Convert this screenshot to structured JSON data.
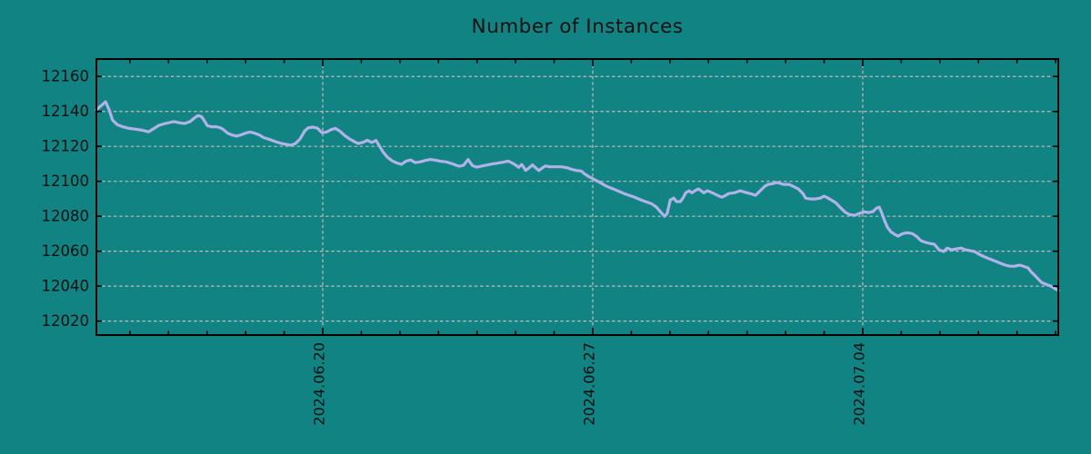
{
  "figure": {
    "type": "plot-window"
  },
  "chart_data": {
    "type": "line",
    "title": "Number of Instances",
    "xlabel": "",
    "ylabel": "",
    "legend": "none",
    "grid": true,
    "x_unit": "days relative to 2024-06-20",
    "xlim": [
      -5.87,
      19.07
    ],
    "ylim": [
      12012,
      12170
    ],
    "y_ticks": [
      12020,
      12040,
      12060,
      12080,
      12100,
      12120,
      12140,
      12160
    ],
    "x_major_ticks": [
      {
        "t": 0,
        "label": "2024.06.20"
      },
      {
        "t": 7,
        "label": "2024.06.27"
      },
      {
        "t": 14,
        "label": "2024.07.04"
      }
    ],
    "x_minor_tick_step": 1,
    "colors": {
      "background": "#128383",
      "line": "#b0b2e8",
      "grid": "#bdbdbd",
      "axis": "#000000",
      "text": "#101010"
    },
    "series": [
      {
        "name": "instances",
        "points": [
          [
            -5.87,
            12141.0
          ],
          [
            -5.76,
            12143.0
          ],
          [
            -5.63,
            12145.5
          ],
          [
            -5.54,
            12141.0
          ],
          [
            -5.45,
            12135.0
          ],
          [
            -5.33,
            12132.5
          ],
          [
            -5.18,
            12131.2
          ],
          [
            -5.02,
            12130.3
          ],
          [
            -4.85,
            12129.8
          ],
          [
            -4.67,
            12129.2
          ],
          [
            -4.52,
            12128.3
          ],
          [
            -4.38,
            12130.2
          ],
          [
            -4.26,
            12131.9
          ],
          [
            -4.12,
            12132.9
          ],
          [
            -3.98,
            12133.6
          ],
          [
            -3.86,
            12134.2
          ],
          [
            -3.72,
            12133.5
          ],
          [
            -3.58,
            12133.1
          ],
          [
            -3.44,
            12134.2
          ],
          [
            -3.32,
            12136.4
          ],
          [
            -3.23,
            12137.6
          ],
          [
            -3.14,
            12137.0
          ],
          [
            -3.06,
            12134.3
          ],
          [
            -2.99,
            12131.8
          ],
          [
            -2.88,
            12131.2
          ],
          [
            -2.76,
            12131.3
          ],
          [
            -2.64,
            12130.5
          ],
          [
            -2.57,
            12129.5
          ],
          [
            -2.47,
            12127.6
          ],
          [
            -2.36,
            12126.6
          ],
          [
            -2.24,
            12125.9
          ],
          [
            -2.12,
            12126.6
          ],
          [
            -2.0,
            12127.6
          ],
          [
            -1.89,
            12128.2
          ],
          [
            -1.77,
            12127.6
          ],
          [
            -1.65,
            12126.6
          ],
          [
            -1.53,
            12125.0
          ],
          [
            -1.41,
            12124.2
          ],
          [
            -1.3,
            12123.3
          ],
          [
            -1.18,
            12122.4
          ],
          [
            -1.06,
            12121.6
          ],
          [
            -0.94,
            12121.1
          ],
          [
            -0.82,
            12120.7
          ],
          [
            -0.71,
            12121.6
          ],
          [
            -0.59,
            12124.2
          ],
          [
            -0.47,
            12128.8
          ],
          [
            -0.38,
            12130.6
          ],
          [
            -0.26,
            12131.0
          ],
          [
            -0.14,
            12130.4
          ],
          [
            -0.02,
            12127.8
          ],
          [
            0.1,
            12128.2
          ],
          [
            0.22,
            12129.6
          ],
          [
            0.33,
            12130.3
          ],
          [
            0.45,
            12128.6
          ],
          [
            0.57,
            12126.2
          ],
          [
            0.69,
            12124.3
          ],
          [
            0.81,
            12122.8
          ],
          [
            0.92,
            12121.6
          ],
          [
            1.04,
            12122.3
          ],
          [
            1.16,
            12123.5
          ],
          [
            1.27,
            12122.2
          ],
          [
            1.38,
            12123.4
          ],
          [
            1.46,
            12120.5
          ],
          [
            1.56,
            12116.9
          ],
          [
            1.68,
            12113.7
          ],
          [
            1.8,
            12111.7
          ],
          [
            1.92,
            12110.5
          ],
          [
            2.04,
            12109.7
          ],
          [
            2.16,
            12111.6
          ],
          [
            2.28,
            12112.2
          ],
          [
            2.4,
            12110.7
          ],
          [
            2.52,
            12111.1
          ],
          [
            2.65,
            12111.9
          ],
          [
            2.79,
            12112.5
          ],
          [
            2.92,
            12112.1
          ],
          [
            3.06,
            12111.5
          ],
          [
            3.2,
            12111.1
          ],
          [
            3.34,
            12110.2
          ],
          [
            3.46,
            12109.2
          ],
          [
            3.54,
            12108.6
          ],
          [
            3.65,
            12109.2
          ],
          [
            3.77,
            12112.5
          ],
          [
            3.88,
            12109.0
          ],
          [
            3.99,
            12108.1
          ],
          [
            4.12,
            12108.7
          ],
          [
            4.25,
            12109.3
          ],
          [
            4.39,
            12109.9
          ],
          [
            4.53,
            12110.4
          ],
          [
            4.67,
            12110.9
          ],
          [
            4.81,
            12111.6
          ],
          [
            4.91,
            12110.5
          ],
          [
            5.0,
            12109.3
          ],
          [
            5.08,
            12108.0
          ],
          [
            5.16,
            12109.6
          ],
          [
            5.26,
            12106.3
          ],
          [
            5.36,
            12107.9
          ],
          [
            5.44,
            12109.4
          ],
          [
            5.52,
            12107.7
          ],
          [
            5.6,
            12106.2
          ],
          [
            5.68,
            12107.5
          ],
          [
            5.77,
            12108.8
          ],
          [
            5.89,
            12108.3
          ],
          [
            6.03,
            12108.3
          ],
          [
            6.19,
            12108.3
          ],
          [
            6.33,
            12107.8
          ],
          [
            6.46,
            12106.8
          ],
          [
            6.58,
            12106.2
          ],
          [
            6.7,
            12105.9
          ],
          [
            6.79,
            12104.2
          ],
          [
            6.9,
            12102.7
          ],
          [
            7.01,
            12101.4
          ],
          [
            7.13,
            12100.0
          ],
          [
            7.36,
            12097.2
          ],
          [
            7.6,
            12095.0
          ],
          [
            7.83,
            12092.8
          ],
          [
            8.07,
            12091.0
          ],
          [
            8.3,
            12088.9
          ],
          [
            8.53,
            12087.1
          ],
          [
            8.65,
            12085.2
          ],
          [
            8.76,
            12082.5
          ],
          [
            8.86,
            12080.0
          ],
          [
            8.93,
            12081.5
          ],
          [
            9.01,
            12089.3
          ],
          [
            9.1,
            12090.4
          ],
          [
            9.17,
            12088.4
          ],
          [
            9.27,
            12088.4
          ],
          [
            9.34,
            12090.4
          ],
          [
            9.41,
            12093.4
          ],
          [
            9.5,
            12094.6
          ],
          [
            9.57,
            12093.4
          ],
          [
            9.65,
            12094.6
          ],
          [
            9.74,
            12095.6
          ],
          [
            9.81,
            12094.6
          ],
          [
            9.88,
            12093.4
          ],
          [
            9.97,
            12094.6
          ],
          [
            10.05,
            12093.9
          ],
          [
            10.14,
            12093.0
          ],
          [
            10.28,
            12091.5
          ],
          [
            10.35,
            12090.9
          ],
          [
            10.45,
            12092.0
          ],
          [
            10.52,
            12093.0
          ],
          [
            10.68,
            12093.5
          ],
          [
            10.82,
            12094.6
          ],
          [
            10.99,
            12093.5
          ],
          [
            11.15,
            12092.5
          ],
          [
            11.22,
            12092.0
          ],
          [
            11.29,
            12093.5
          ],
          [
            11.39,
            12095.6
          ],
          [
            11.46,
            12097.2
          ],
          [
            11.55,
            12098.2
          ],
          [
            11.69,
            12098.8
          ],
          [
            11.76,
            12099.3
          ],
          [
            11.86,
            12098.8
          ],
          [
            11.95,
            12098.2
          ],
          [
            12.09,
            12098.2
          ],
          [
            12.19,
            12097.2
          ],
          [
            12.33,
            12095.6
          ],
          [
            12.45,
            12093.0
          ],
          [
            12.52,
            12090.4
          ],
          [
            12.64,
            12089.9
          ],
          [
            12.78,
            12089.9
          ],
          [
            12.9,
            12090.4
          ],
          [
            12.99,
            12091.5
          ],
          [
            13.06,
            12090.9
          ],
          [
            13.18,
            12089.4
          ],
          [
            13.3,
            12087.8
          ],
          [
            13.41,
            12085.2
          ],
          [
            13.53,
            12082.6
          ],
          [
            13.65,
            12081.0
          ],
          [
            13.79,
            12080.5
          ],
          [
            13.91,
            12081.6
          ],
          [
            14.03,
            12082.6
          ],
          [
            14.14,
            12082.1
          ],
          [
            14.26,
            12082.6
          ],
          [
            14.36,
            12084.7
          ],
          [
            14.43,
            12085.2
          ],
          [
            14.5,
            12081.6
          ],
          [
            14.57,
            12077.3
          ],
          [
            14.64,
            12073.7
          ],
          [
            14.73,
            12071.1
          ],
          [
            14.83,
            12069.6
          ],
          [
            14.92,
            12068.6
          ],
          [
            15.04,
            12070.1
          ],
          [
            15.16,
            12070.6
          ],
          [
            15.28,
            12070.1
          ],
          [
            15.39,
            12068.6
          ],
          [
            15.51,
            12066.0
          ],
          [
            15.63,
            12065.0
          ],
          [
            15.75,
            12064.4
          ],
          [
            15.86,
            12063.9
          ],
          [
            15.98,
            12060.8
          ],
          [
            16.1,
            12059.8
          ],
          [
            16.19,
            12061.8
          ],
          [
            16.31,
            12060.8
          ],
          [
            16.43,
            12061.3
          ],
          [
            16.55,
            12061.8
          ],
          [
            16.66,
            12060.8
          ],
          [
            16.78,
            12060.3
          ],
          [
            16.9,
            12059.8
          ],
          [
            17.02,
            12058.2
          ],
          [
            17.11,
            12057.2
          ],
          [
            17.23,
            12056.1
          ],
          [
            17.35,
            12055.1
          ],
          [
            17.47,
            12054.0
          ],
          [
            17.58,
            12053.0
          ],
          [
            17.7,
            12052.0
          ],
          [
            17.82,
            12051.4
          ],
          [
            17.94,
            12051.4
          ],
          [
            18.06,
            12052.0
          ],
          [
            18.17,
            12051.4
          ],
          [
            18.29,
            12050.4
          ],
          [
            18.36,
            12048.3
          ],
          [
            18.46,
            12046.2
          ],
          [
            18.55,
            12044.1
          ],
          [
            18.64,
            12042.1
          ],
          [
            18.76,
            12041.0
          ],
          [
            18.88,
            12040.0
          ],
          [
            19.0,
            12038.4
          ],
          [
            19.07,
            12037.5
          ]
        ]
      }
    ]
  }
}
